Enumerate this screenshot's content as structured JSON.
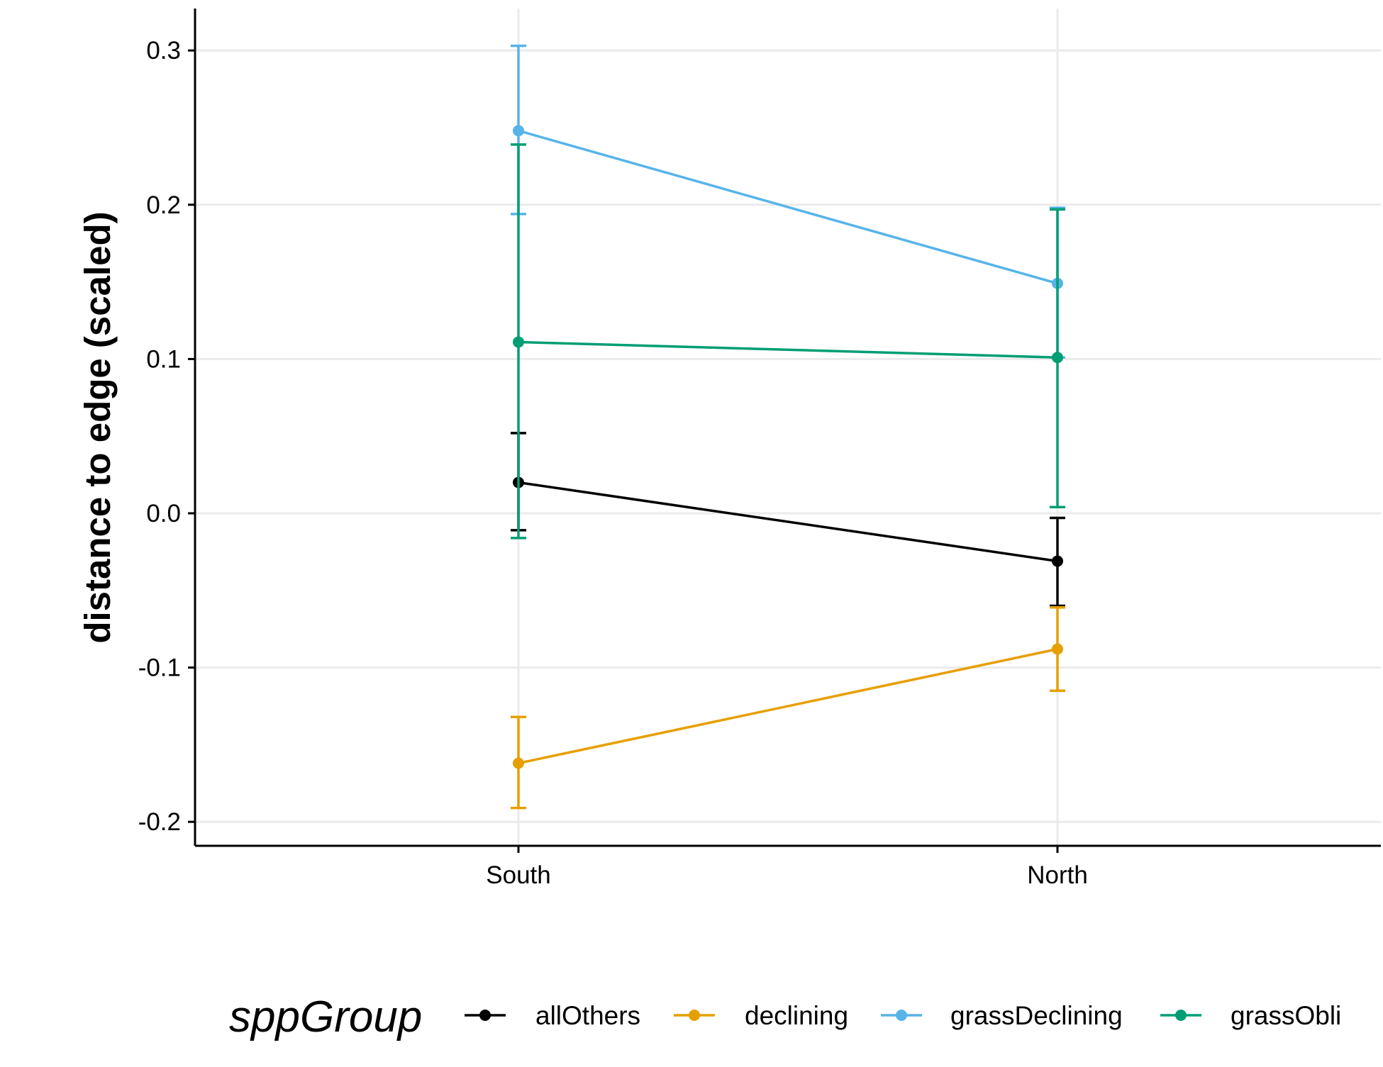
{
  "chart_data": {
    "type": "line",
    "title": "",
    "xlabel": "",
    "ylabel": "distance to edge (scaled)",
    "categories": [
      "South",
      "North"
    ],
    "ylim": [
      -0.205,
      0.32
    ],
    "yticks": [
      -0.2,
      -0.1,
      0.0,
      0.1,
      0.2,
      0.3
    ],
    "ytick_labels": [
      "-0.2",
      "-0.1",
      "0.0",
      "0.1",
      "0.2",
      "0.3"
    ],
    "grid": true,
    "legend": {
      "title": "sppGroup",
      "position": "bottom"
    },
    "series": [
      {
        "name": "allOthers",
        "color": "#000000",
        "values": [
          0.02,
          -0.031
        ],
        "lower": [
          -0.011,
          -0.06
        ],
        "upper": [
          0.052,
          -0.003
        ]
      },
      {
        "name": "declining",
        "color": "#E69F00",
        "values": [
          -0.162,
          -0.088
        ],
        "lower": [
          -0.191,
          -0.115
        ],
        "upper": [
          -0.132,
          -0.061
        ]
      },
      {
        "name": "grassDeclining",
        "color": "#56B4E9",
        "values": [
          0.248,
          0.149
        ],
        "lower": [
          0.194,
          0.101
        ],
        "upper": [
          0.303,
          0.198
        ]
      },
      {
        "name": "grassObli",
        "color": "#009E73",
        "values": [
          0.111,
          0.101
        ],
        "lower": [
          -0.016,
          0.004
        ],
        "upper": [
          0.239,
          0.197
        ]
      }
    ]
  }
}
